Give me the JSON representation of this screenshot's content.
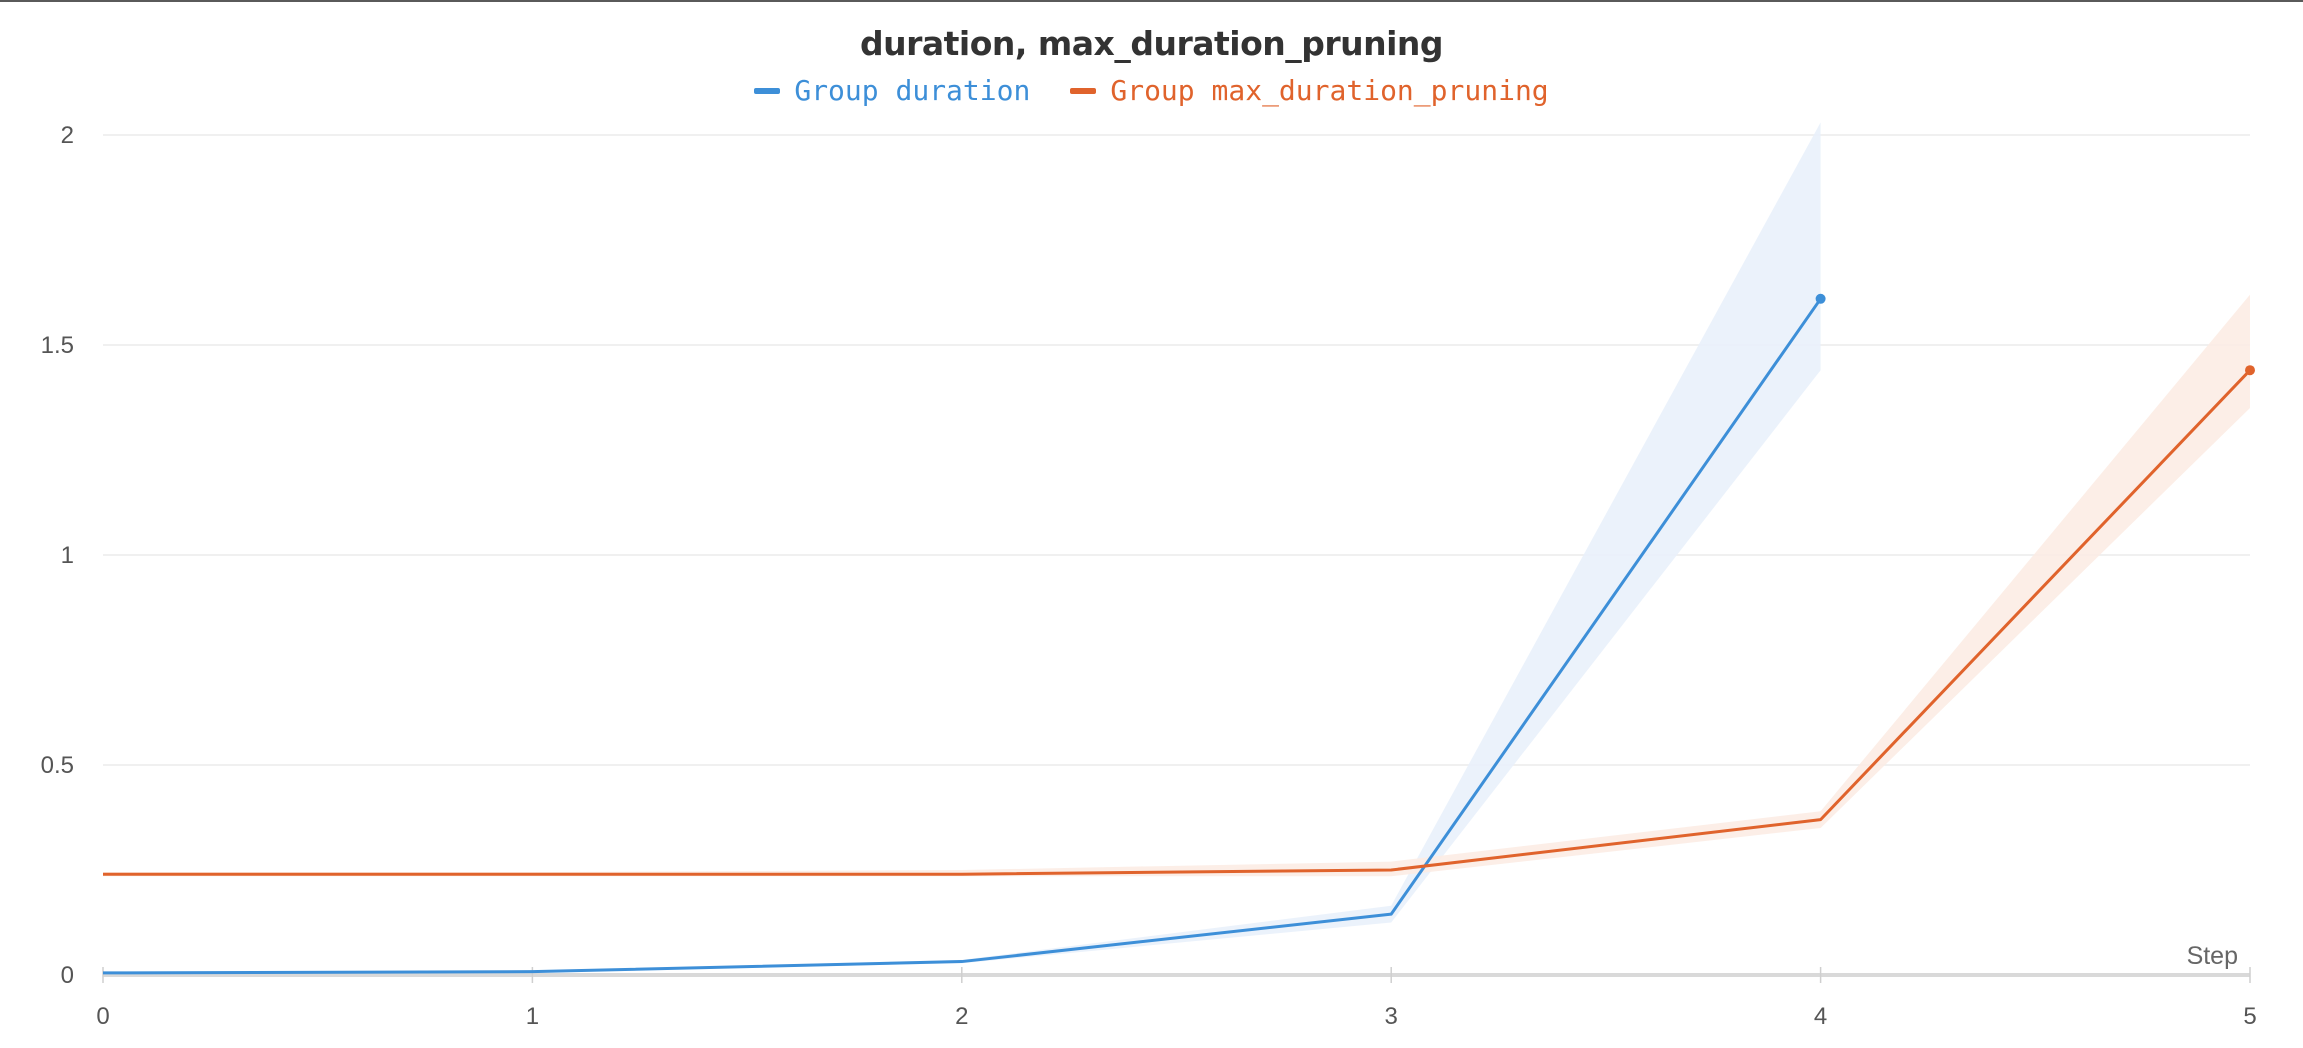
{
  "chart_data": {
    "type": "line",
    "title": "duration, max_duration_pruning",
    "xlabel": "Step",
    "ylabel": "",
    "xlim": [
      0,
      5
    ],
    "ylim": [
      0,
      2
    ],
    "x_ticks": [
      "0",
      "1",
      "2",
      "3",
      "4",
      "5"
    ],
    "y_ticks": [
      "0",
      "0.5",
      "1",
      "1.5",
      "2"
    ],
    "grid": true,
    "legend_position": "top-center",
    "series": [
      {
        "name": "Group duration",
        "color": "#3d8fd8",
        "band_color": "#e9f1fb",
        "x": [
          0,
          1,
          2,
          3,
          4
        ],
        "y": [
          0.005,
          0.008,
          0.032,
          0.145,
          1.61
        ],
        "y_lower": [
          0.004,
          0.006,
          0.028,
          0.125,
          1.44
        ],
        "y_upper": [
          0.007,
          0.01,
          0.036,
          0.165,
          2.03
        ]
      },
      {
        "name": "Group max_duration_pruning",
        "color": "#e0632c",
        "band_color": "#fcece4",
        "x": [
          0,
          1,
          2,
          3,
          4,
          5
        ],
        "y": [
          0.24,
          0.24,
          0.24,
          0.25,
          0.37,
          1.44
        ],
        "y_lower": [
          0.235,
          0.235,
          0.235,
          0.235,
          0.35,
          1.35
        ],
        "y_upper": [
          0.245,
          0.245,
          0.25,
          0.27,
          0.39,
          1.62
        ]
      }
    ]
  }
}
